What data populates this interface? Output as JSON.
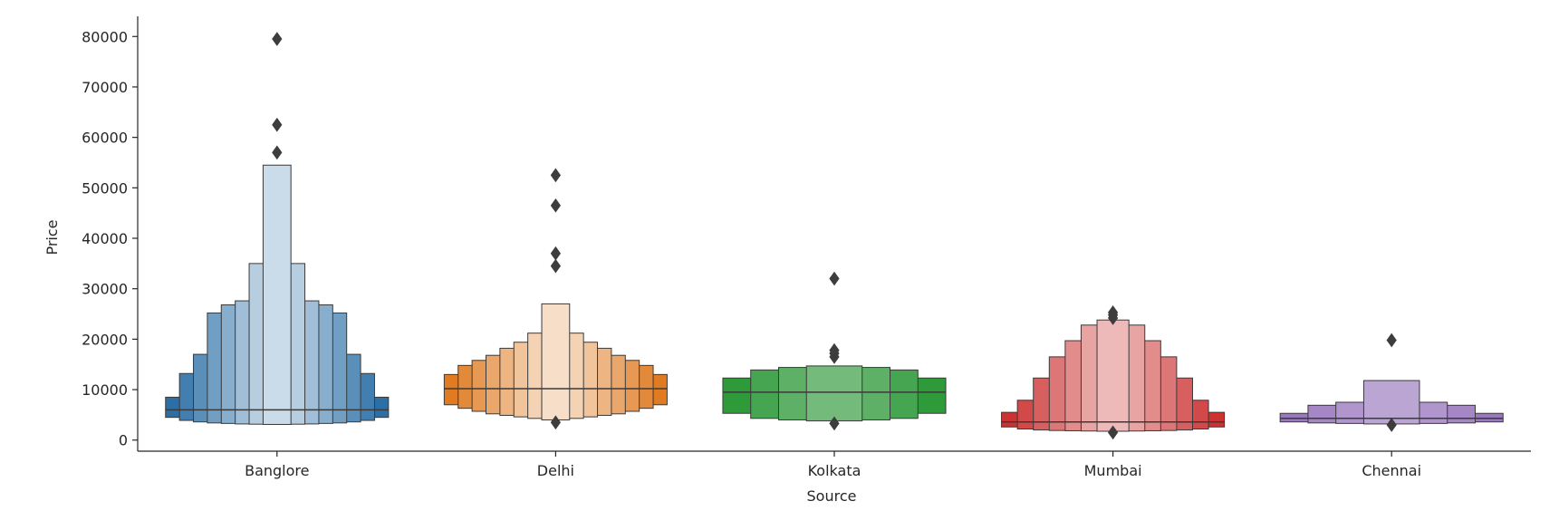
{
  "chart_data": {
    "type": "boxenplot",
    "xlabel": "Source",
    "ylabel": "Price",
    "ylim": [
      -2200,
      84000
    ],
    "yticks": [
      0,
      10000,
      20000,
      30000,
      40000,
      50000,
      60000,
      70000,
      80000
    ],
    "categories": [
      "Banglore",
      "Delhi",
      "Kolkata",
      "Mumbai",
      "Chennai"
    ],
    "grid": false,
    "boxes": [
      {
        "category": "Banglore",
        "color": "#2b6fa6",
        "median": 6000,
        "levels": [
          {
            "lo": 4500,
            "hi": 8500
          },
          {
            "lo": 3900,
            "hi": 13200
          },
          {
            "lo": 3600,
            "hi": 17000
          },
          {
            "lo": 3400,
            "hi": 25200
          },
          {
            "lo": 3300,
            "hi": 26800
          },
          {
            "lo": 3200,
            "hi": 27600
          },
          {
            "lo": 3150,
            "hi": 35000
          },
          {
            "lo": 3100,
            "hi": 54500
          }
        ],
        "outliers": [
          57000,
          62500,
          79500
        ]
      },
      {
        "category": "Delhi",
        "color": "#e07b22",
        "median": 10200,
        "levels": [
          {
            "lo": 7000,
            "hi": 13000
          },
          {
            "lo": 6300,
            "hi": 14800
          },
          {
            "lo": 5700,
            "hi": 15800
          },
          {
            "lo": 5200,
            "hi": 16800
          },
          {
            "lo": 4900,
            "hi": 18200
          },
          {
            "lo": 4600,
            "hi": 19400
          },
          {
            "lo": 4300,
            "hi": 21200
          },
          {
            "lo": 4000,
            "hi": 27000
          }
        ],
        "outliers": [
          3500,
          34500,
          37000,
          46500,
          52500
        ]
      },
      {
        "category": "Kolkata",
        "color": "#2f9a3a",
        "median": 9500,
        "levels": [
          {
            "lo": 5300,
            "hi": 12300
          },
          {
            "lo": 4300,
            "hi": 13900
          },
          {
            "lo": 4000,
            "hi": 14400
          },
          {
            "lo": 3800,
            "hi": 14700
          }
        ],
        "outliers": [
          3300,
          16500,
          17200,
          17800,
          32000
        ]
      },
      {
        "category": "Mumbai",
        "color": "#cc3232",
        "median": 3600,
        "levels": [
          {
            "lo": 2600,
            "hi": 5500
          },
          {
            "lo": 2200,
            "hi": 7900
          },
          {
            "lo": 2000,
            "hi": 12300
          },
          {
            "lo": 1900,
            "hi": 16500
          },
          {
            "lo": 1850,
            "hi": 19700
          },
          {
            "lo": 1800,
            "hi": 22800
          },
          {
            "lo": 1750,
            "hi": 23800
          }
        ],
        "outliers": [
          1500,
          24200,
          24800,
          25300
        ]
      },
      {
        "category": "Chennai",
        "color": "#9a78be",
        "median": 4300,
        "levels": [
          {
            "lo": 3600,
            "hi": 5300
          },
          {
            "lo": 3400,
            "hi": 6900
          },
          {
            "lo": 3300,
            "hi": 7500
          },
          {
            "lo": 3200,
            "hi": 11800
          }
        ],
        "outliers": [
          3000,
          19800
        ]
      }
    ]
  }
}
